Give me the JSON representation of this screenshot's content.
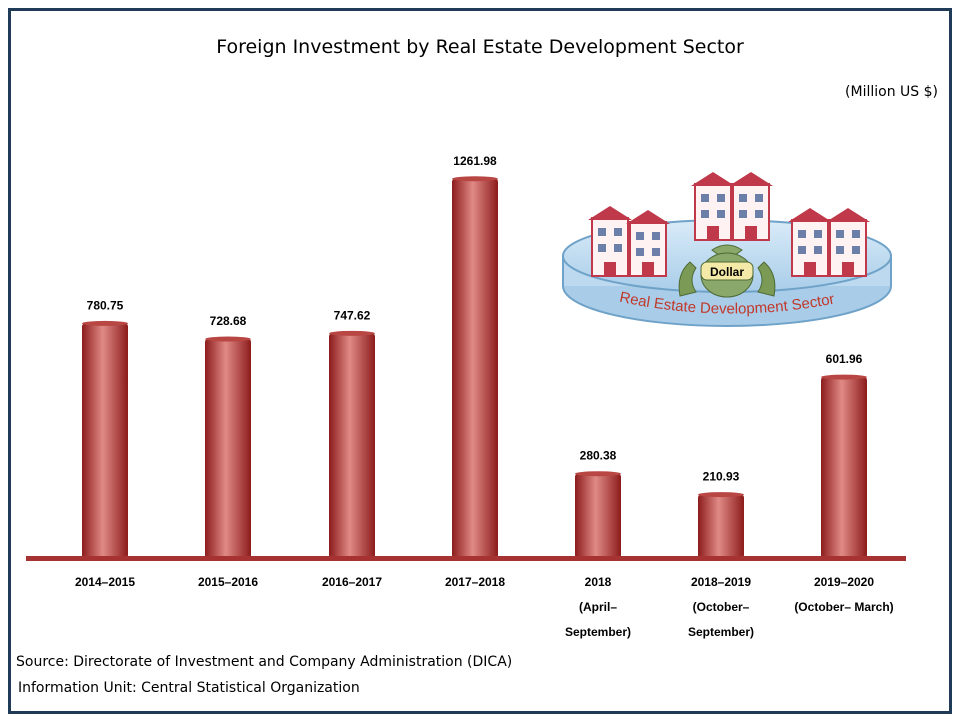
{
  "title": "Foreign Investment by Real Estate Development Sector",
  "unit_label": "(Million US $)",
  "source_line": "Source:  Directorate of Investment and Company Administration (DICA)",
  "info_line": "Information Unit:  Central Statistical Organization",
  "illustration": {
    "ring_label": "Real Estate Development Sector",
    "bag_label": "Dollar"
  },
  "colors": {
    "bar_dark": "#8c1c1c",
    "bar_mid": "#c0504d",
    "bar_light": "#e08a86",
    "baseline": "#a63232",
    "frame": "#1f3b57",
    "ring_fill": "#bcd9ef",
    "ring_stroke": "#6fa2c8",
    "ring_text": "#c0392b",
    "building_red": "#c0394b",
    "building_wall": "#fff2f2",
    "bag_green": "#8aa86a",
    "bag_label_fill": "#f4e9a6",
    "hands_green": "#7a9a55"
  },
  "chart_data": {
    "type": "bar",
    "categories": [
      [
        "2014–2015"
      ],
      [
        "2015–2016"
      ],
      [
        "2016–2017"
      ],
      [
        "2017–2018"
      ],
      [
        "2018",
        "(April–",
        "September)"
      ],
      [
        "2018–2019",
        "(October–",
        "September)"
      ],
      [
        "2019–2020",
        "(October– March)"
      ]
    ],
    "values": [
      780.75,
      728.68,
      747.62,
      1261.98,
      280.38,
      210.93,
      601.96
    ],
    "value_labels": [
      "780.75",
      "728.68",
      "747.62",
      "1261.98",
      "280.38",
      "210.93",
      "601.96"
    ],
    "title": "Foreign Investment by Real Estate Development Sector",
    "ylabel": "(Million US $)",
    "xlabel": "",
    "ylim": [
      0,
      1400
    ],
    "grid": false,
    "legend": "none"
  }
}
